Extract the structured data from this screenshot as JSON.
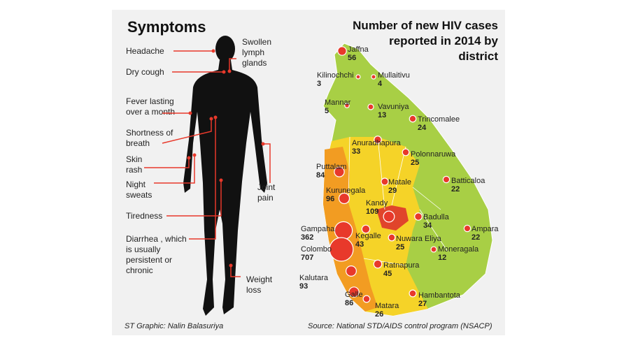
{
  "symptoms": {
    "title": "Symptoms",
    "items": [
      {
        "lines": [
          "Headache"
        ]
      },
      {
        "lines": [
          "Dry cough"
        ]
      },
      {
        "lines": [
          "Fever lasting",
          "over a month"
        ]
      },
      {
        "lines": [
          "Shortness of",
          "breath"
        ]
      },
      {
        "lines": [
          "Skin",
          "rash"
        ]
      },
      {
        "lines": [
          "Night",
          "sweats"
        ]
      },
      {
        "lines": [
          "Tiredness"
        ]
      },
      {
        "lines": [
          "Diarrhea , which",
          "is usually",
          "persistent or",
          "chronic"
        ]
      },
      {
        "lines": [
          "Swollen",
          "lymph",
          "glands"
        ]
      },
      {
        "lines": [
          "Joint",
          "pain"
        ]
      },
      {
        "lines": [
          "Weight",
          "loss"
        ]
      }
    ],
    "credit": "ST Graphic: Nalin Balasuriya"
  },
  "map": {
    "title": [
      "Number of new HIV cases",
      "reported in 2014 by",
      "district"
    ],
    "districts": [
      {
        "name": "Jaffna",
        "value": 56
      },
      {
        "name": "Kilinochchi",
        "value": 3
      },
      {
        "name": "Mullaitivu",
        "value": 4
      },
      {
        "name": "Mannar",
        "value": 5
      },
      {
        "name": "Vavuniya",
        "value": 13
      },
      {
        "name": "Trincomalee",
        "value": 24
      },
      {
        "name": "Anuradhapura",
        "value": 33
      },
      {
        "name": "Polonnaruwa",
        "value": 25
      },
      {
        "name": "Puttalam",
        "value": 84
      },
      {
        "name": "Batticaloa",
        "value": 22
      },
      {
        "name": "Matale",
        "value": 29
      },
      {
        "name": "Kurunegala",
        "value": 96
      },
      {
        "name": "Kandy",
        "value": 109
      },
      {
        "name": "Badulla",
        "value": 34
      },
      {
        "name": "Gampaha",
        "value": 362
      },
      {
        "name": "Kegalle",
        "value": 43
      },
      {
        "name": "Ampara",
        "value": 22
      },
      {
        "name": "Colombo",
        "value": 707
      },
      {
        "name": "Nuwara Eliya",
        "value": 25
      },
      {
        "name": "Moneragala",
        "value": 12
      },
      {
        "name": "Ratnapura",
        "value": 45
      },
      {
        "name": "Kalutara",
        "value": 93
      },
      {
        "name": "Galle",
        "value": 86
      },
      {
        "name": "Hambantota",
        "value": 27
      },
      {
        "name": "Matara",
        "value": 26
      }
    ],
    "source": "Source: National STD/AIDS control program (NSACP)"
  }
}
